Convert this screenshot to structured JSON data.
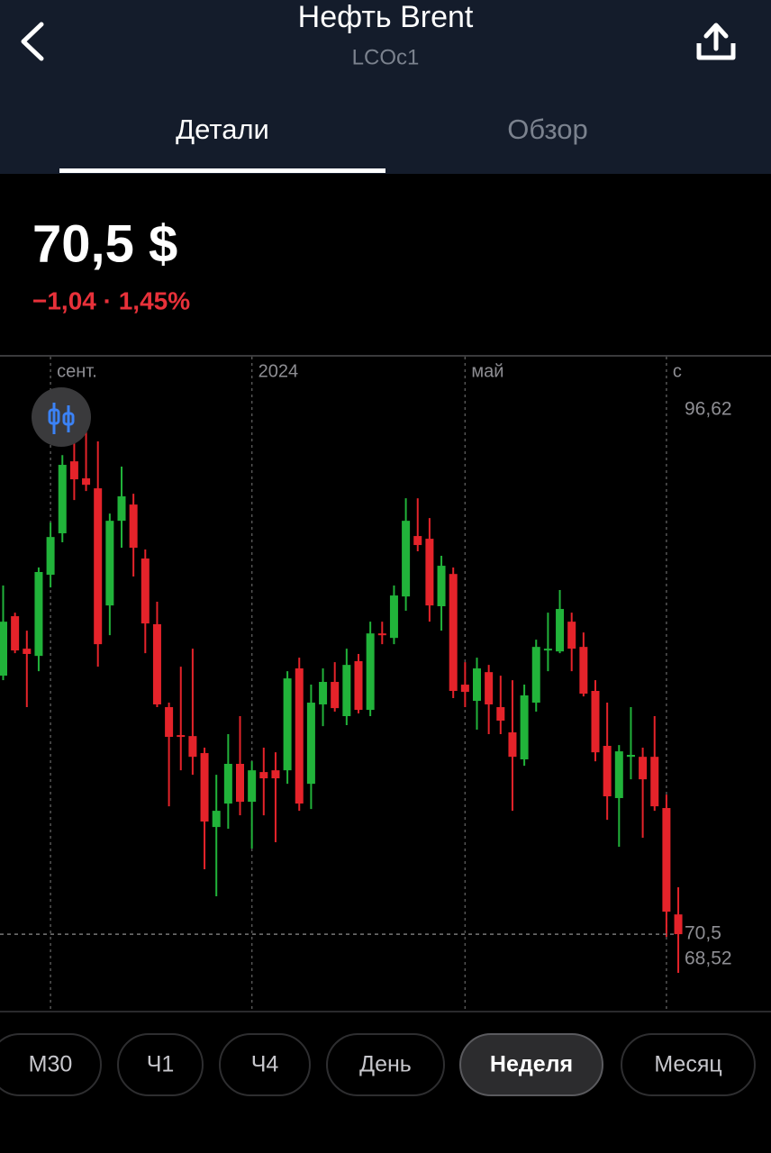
{
  "header": {
    "title": "Нефть Brent",
    "subtitle": "LCOc1"
  },
  "tabs": {
    "items": [
      "Детали",
      "Обзор"
    ],
    "active": 0
  },
  "quote": {
    "price": "70,5 $",
    "change": "−1,04 · 1,45%"
  },
  "chart_data": {
    "type": "candlestick",
    "categories": [
      null,
      null,
      null,
      null,
      "сент.",
      null,
      null,
      null,
      null,
      null,
      null,
      null,
      null,
      null,
      null,
      null,
      null,
      null,
      null,
      null,
      null,
      "2024",
      null,
      null,
      null,
      null,
      null,
      null,
      null,
      null,
      null,
      null,
      null,
      null,
      null,
      null,
      null,
      null,
      null,
      "май",
      null,
      null,
      null,
      null,
      null,
      null,
      null,
      null,
      null,
      null,
      null,
      null,
      null,
      null,
      null,
      null,
      "с",
      null
    ],
    "open": [
      83.72,
      86.76,
      85.1,
      84.73,
      88.88,
      91.0,
      94.68,
      93.81,
      93.3,
      87.31,
      91.64,
      92.47,
      89.71,
      86.35,
      82.11,
      80.68,
      80.63,
      79.76,
      75.98,
      77.18,
      79.21,
      77.27,
      78.79,
      78.88,
      78.88,
      84.09,
      78.19,
      82.25,
      83.4,
      81.65,
      84.46,
      81.97,
      85.88,
      85.65,
      87.77,
      90.86,
      90.72,
      87.27,
      88.92,
      83.26,
      82.43,
      83.9,
      82.11,
      80.82,
      79.44,
      82.34,
      85.01,
      84.96,
      86.48,
      85.19,
      82.94,
      80.13,
      77.46,
      79.57,
      79.57,
      79.57,
      76.95,
      71.51
    ],
    "high": [
      88.33,
      86.94,
      86.02,
      89.25,
      91.55,
      95.0,
      95.7,
      96.62,
      95.7,
      92.01,
      94.41,
      93.02,
      90.17,
      87.5,
      82.34,
      84.18,
      85.1,
      80.04,
      78.65,
      80.73,
      81.65,
      79.34,
      80.04,
      79.8,
      83.95,
      84.64,
      83.26,
      84.09,
      84.41,
      85.1,
      84.83,
      86.48,
      86.48,
      88.33,
      92.79,
      92.79,
      91.78,
      89.85,
      89.25,
      84.41,
      84.64,
      84.27,
      83.72,
      83.49,
      83.26,
      85.56,
      86.94,
      88.1,
      86.94,
      85.93,
      83.49,
      82.34,
      80.17,
      82.11,
      80.04,
      81.65,
      77.64,
      72.9
    ],
    "low": [
      83.49,
      84.87,
      82.11,
      83.95,
      88.23,
      90.54,
      92.7,
      93.16,
      84.18,
      85.79,
      90.26,
      88.79,
      84.87,
      82.11,
      77.04,
      78.88,
      78.65,
      73.82,
      72.44,
      75.89,
      76.58,
      74.88,
      76.58,
      75.2,
      78.19,
      76.81,
      76.9,
      81.14,
      81.88,
      81.19,
      81.79,
      81.65,
      85.33,
      85.33,
      87.04,
      90.08,
      86.48,
      86.02,
      82.57,
      82.11,
      80.96,
      80.73,
      80.73,
      76.81,
      79.11,
      81.88,
      83.95,
      84.87,
      83.95,
      82.66,
      79.34,
      76.35,
      74.97,
      78.42,
      75.43,
      76.81,
      70.36,
      68.52
    ],
    "close": [
      86.48,
      85.01,
      84.83,
      89.02,
      90.81,
      94.5,
      93.76,
      93.48,
      85.33,
      91.64,
      92.89,
      90.26,
      86.39,
      82.25,
      80.59,
      80.59,
      79.57,
      76.26,
      76.81,
      79.21,
      77.27,
      78.88,
      78.47,
      78.47,
      83.58,
      77.18,
      82.34,
      83.4,
      82.06,
      84.27,
      81.97,
      85.88,
      85.79,
      87.82,
      91.64,
      90.4,
      87.31,
      89.34,
      82.94,
      82.89,
      84.09,
      82.25,
      81.42,
      79.57,
      82.71,
      85.19,
      85.1,
      87.13,
      85.1,
      82.8,
      79.8,
      77.55,
      79.85,
      79.67,
      78.42,
      77.04,
      71.65,
      70.5
    ],
    "up_color": "#21b33a",
    "down_color": "#e5232a",
    "ylim": [
      66.68,
      100.03
    ],
    "price_labels": [
      {
        "value": 96.62,
        "label": "96,62"
      },
      {
        "value": 70.5,
        "label": "70,5"
      },
      {
        "value": 68.52,
        "label": "68,52"
      }
    ],
    "grid": true
  },
  "timeframes": {
    "items": [
      "М30",
      "Ч1",
      "Ч4",
      "День",
      "Неделя",
      "Месяц"
    ],
    "active": 4
  }
}
